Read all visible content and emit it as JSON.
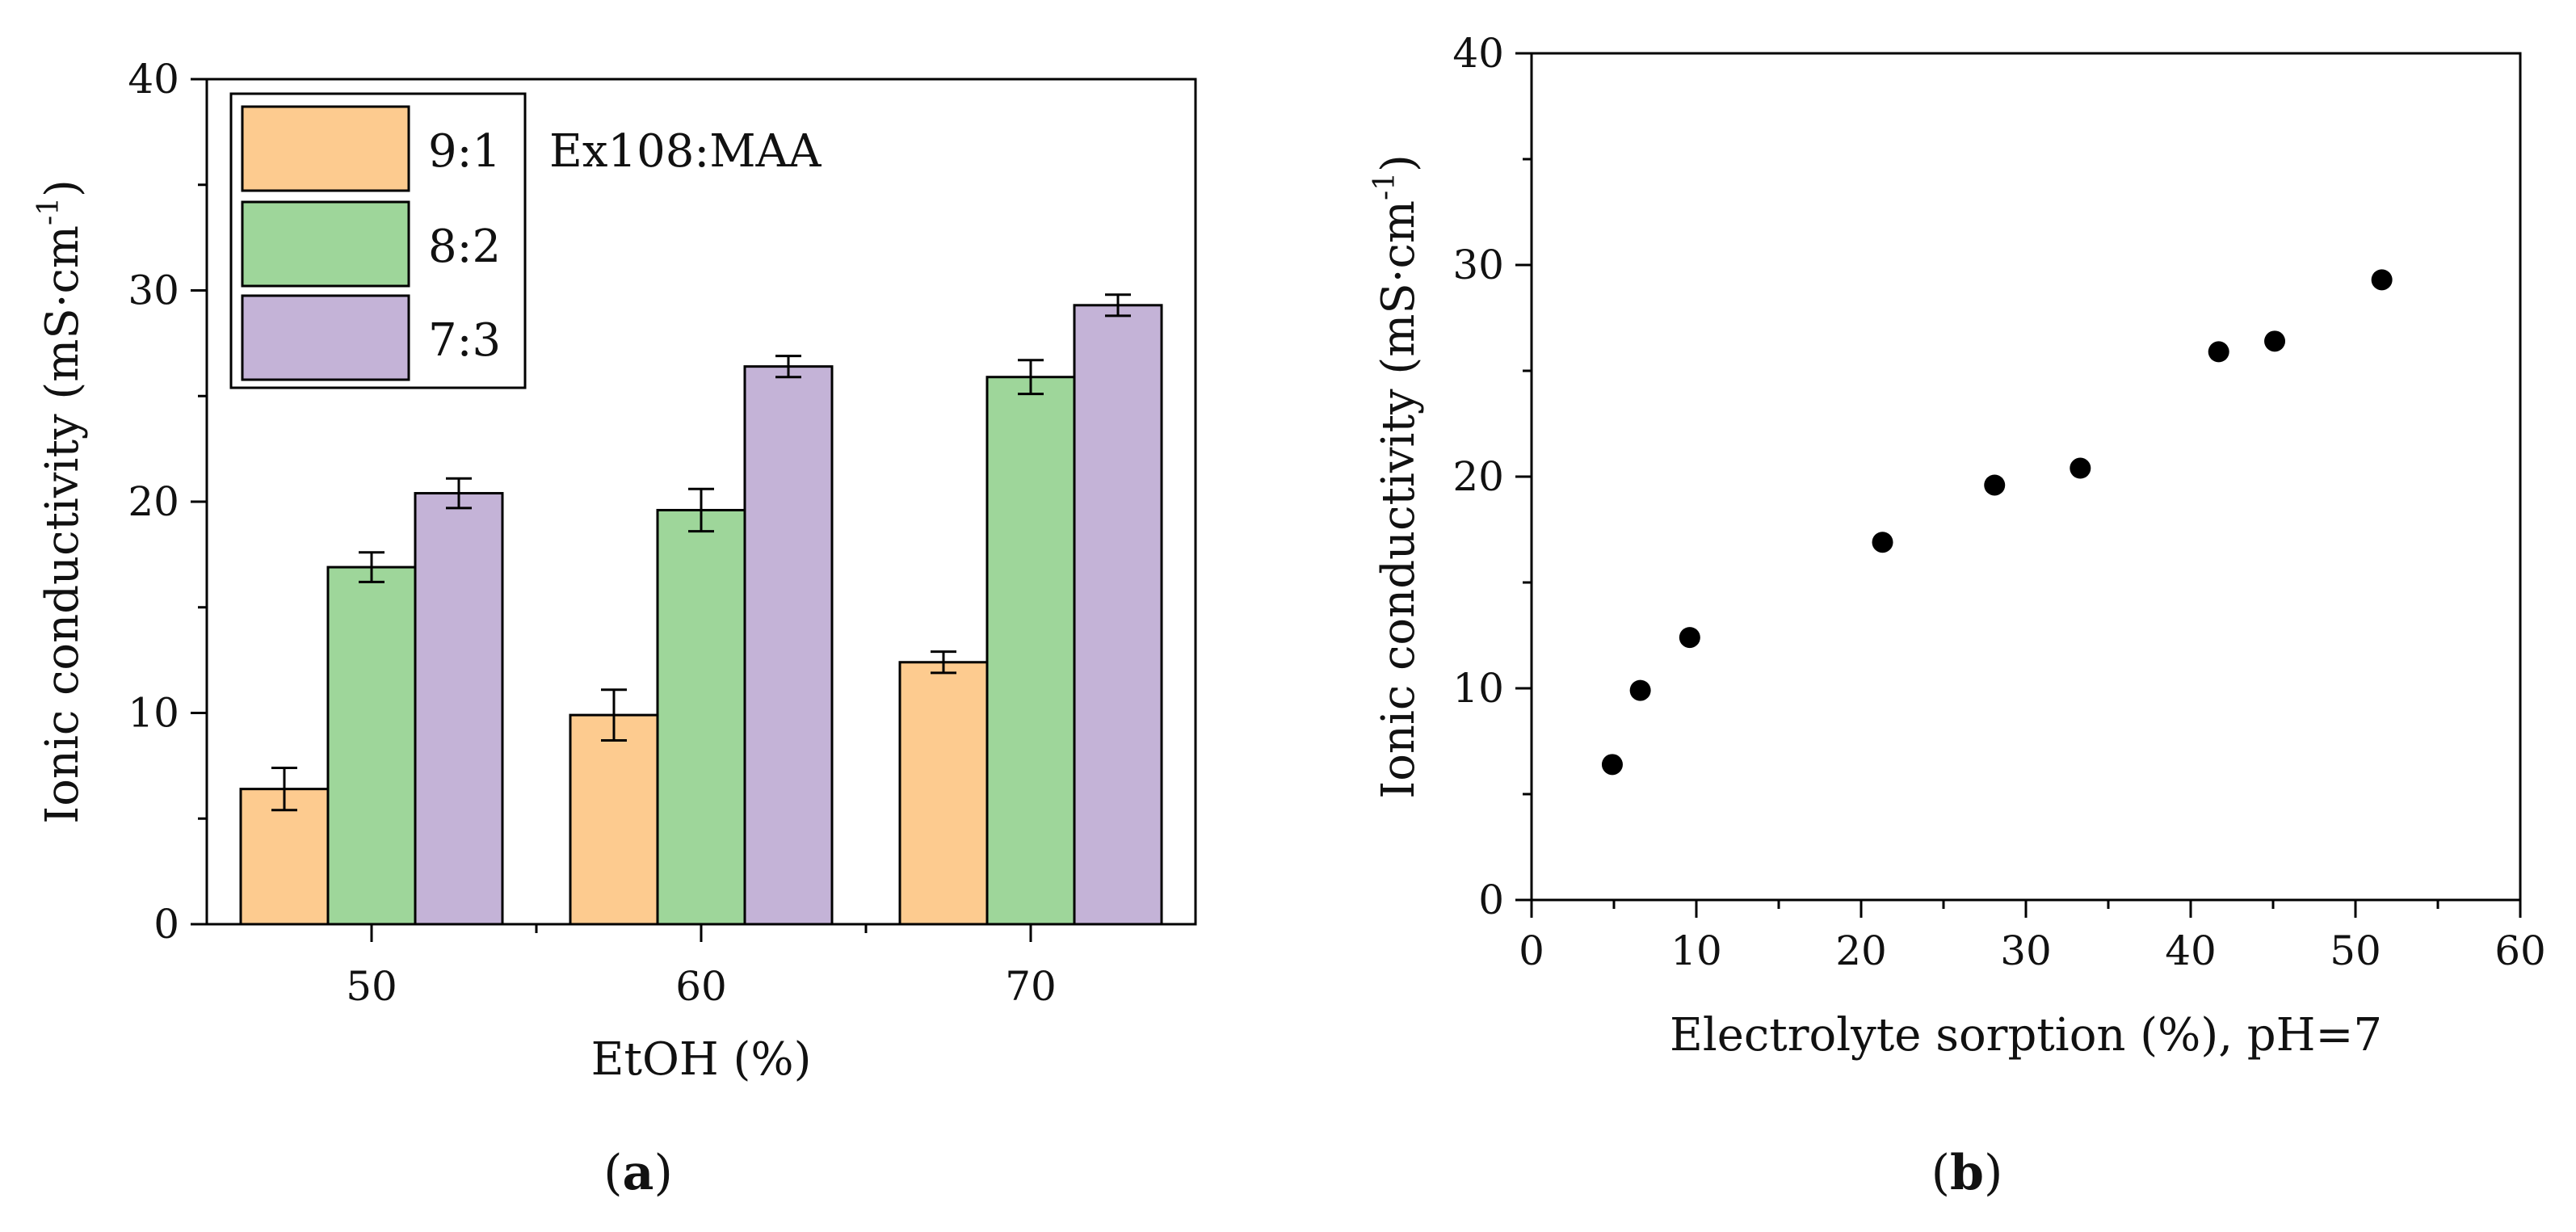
{
  "chart_data": [
    {
      "type": "bar",
      "panel_label": "a",
      "xlabel": "EtOH (%)",
      "ylabel": "Ionic conductivity (mS·cm",
      "ylabel_sup": "-1",
      "ylabel_close": ")",
      "ylim": [
        0,
        40
      ],
      "yticks": [
        "0",
        "10",
        "20",
        "30",
        "40"
      ],
      "categories": [
        "50",
        "60",
        "70"
      ],
      "legend_title": "Ex108:MAA",
      "legend_position": "top-left",
      "series": [
        {
          "name": "9:1",
          "color": "#FDCB8F",
          "values": [
            6.4,
            9.9,
            12.4
          ],
          "errors": [
            1.0,
            1.2,
            0.5
          ]
        },
        {
          "name": "8:2",
          "color": "#9ED69A",
          "values": [
            16.9,
            19.6,
            25.9
          ],
          "errors": [
            0.7,
            1.0,
            0.8
          ]
        },
        {
          "name": "7:3",
          "color": "#C4B3D7",
          "values": [
            20.4,
            26.4,
            29.3
          ],
          "errors": [
            0.7,
            0.5,
            0.5
          ]
        }
      ]
    },
    {
      "type": "scatter",
      "panel_label": "b",
      "xlabel": "Electrolyte sorption (%), pH=7",
      "ylabel": "Ionic conductivity (mS·cm",
      "ylabel_sup": "-1",
      "ylabel_close": ")",
      "xlim": [
        0,
        60
      ],
      "ylim": [
        0,
        40
      ],
      "xticks": [
        "0",
        "10",
        "20",
        "30",
        "40",
        "50",
        "60"
      ],
      "yticks": [
        "0",
        "10",
        "20",
        "30",
        "40"
      ],
      "marker_color": "#000000",
      "x": [
        4.9,
        6.6,
        9.6,
        21.3,
        28.1,
        33.3,
        41.7,
        45.1,
        51.6
      ],
      "y": [
        6.4,
        9.9,
        12.4,
        16.9,
        19.6,
        20.4,
        25.9,
        26.4,
        29.3
      ]
    }
  ]
}
